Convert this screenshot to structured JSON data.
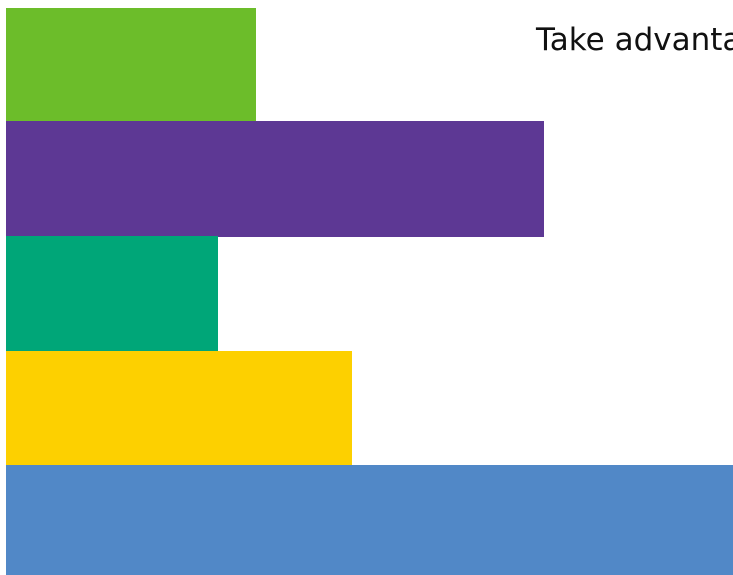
{
  "headline": {
    "text": "Take advanta"
  },
  "bars": [
    {
      "color": "#6cbd2a"
    },
    {
      "color": "#5d3894"
    },
    {
      "color": "#00a678"
    },
    {
      "color": "#fdd000"
    },
    {
      "color": "#5188c7"
    }
  ]
}
